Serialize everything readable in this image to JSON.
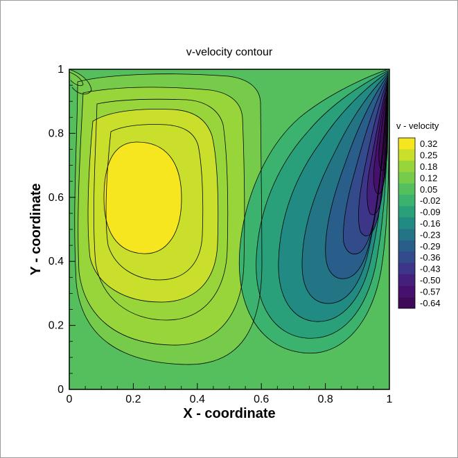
{
  "chart_data": {
    "type": "heatmap",
    "subtype": "filled-contour",
    "title": "v-velocity contour",
    "xlabel": "X - coordinate",
    "ylabel": "Y - coordinate",
    "xlim": [
      0,
      1
    ],
    "ylim": [
      0,
      1
    ],
    "x_ticks": [
      "0",
      "0.2",
      "0.4",
      "0.6",
      "0.8",
      "1"
    ],
    "y_ticks": [
      "0",
      "0.2",
      "0.4",
      "0.6",
      "0.8",
      "1"
    ],
    "legend": {
      "title": "v - velocity",
      "placement": "right",
      "levels": [
        "0.32",
        "0.25",
        "0.18",
        "0.12",
        "0.05",
        "-0.02",
        "-0.09",
        "-0.16",
        "-0.23",
        "-0.29",
        "-0.36",
        "-0.43",
        "-0.50",
        "-0.57",
        "-0.64"
      ],
      "colors": [
        "#f5e61f",
        "#c9df2b",
        "#98d53b",
        "#76cb4a",
        "#55be5d",
        "#3bb36e",
        "#29a07a",
        "#218a82",
        "#237485",
        "#2a5e8a",
        "#334b8b",
        "#3c3588",
        "#44207c",
        "#46116c",
        "#3f0a57"
      ]
    },
    "background_level": 0.05,
    "field": {
      "positive_core": {
        "x": 0.21,
        "y": 0.6,
        "peak": 0.32
      },
      "negative_core": {
        "x": 0.93,
        "y": 0.8,
        "peak": -0.64
      }
    },
    "grid": false
  }
}
